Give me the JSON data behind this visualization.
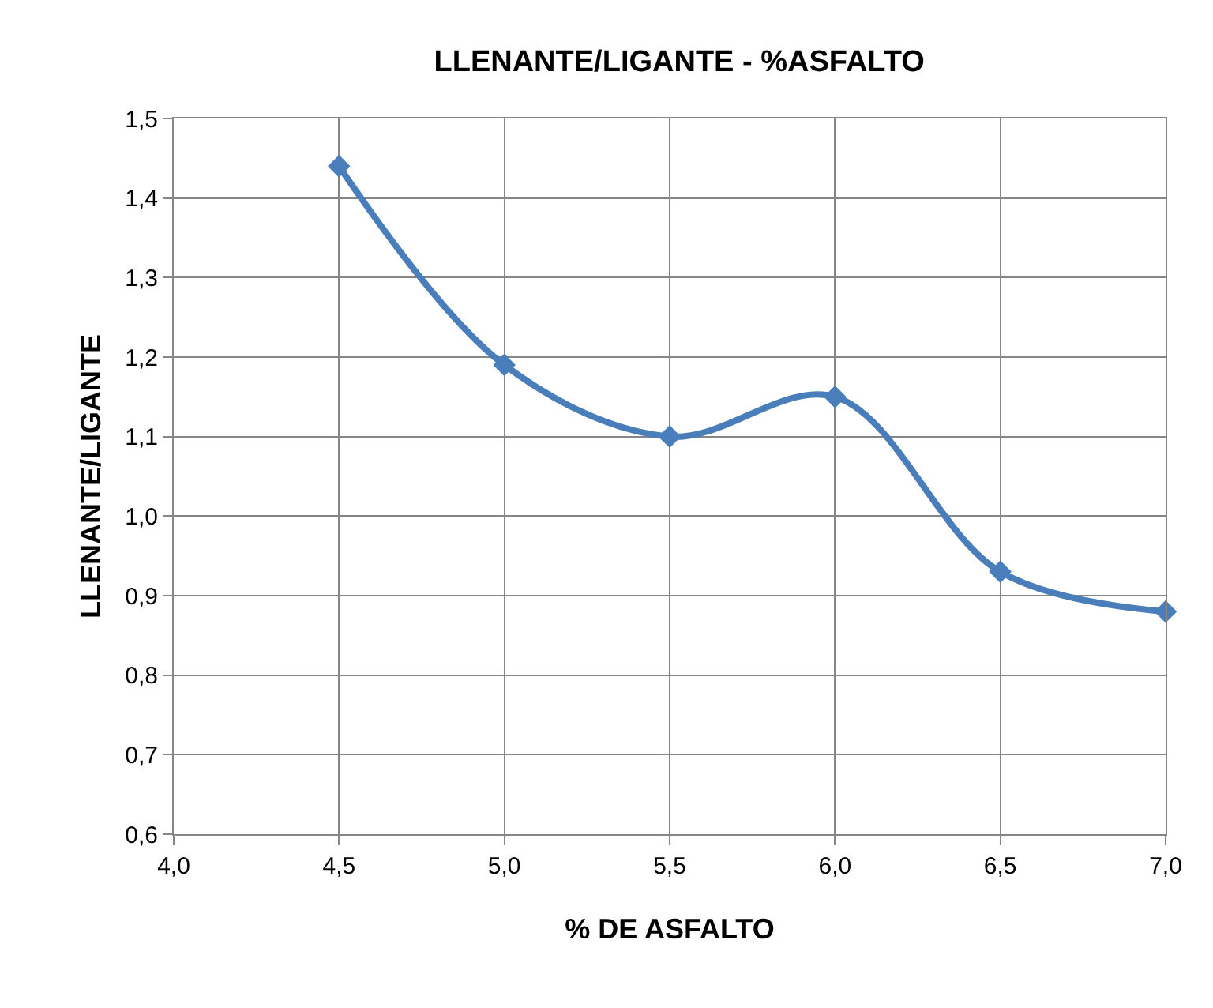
{
  "chart_data": {
    "type": "line",
    "title": "LLENANTE/LIGANTE - %ASFALTO",
    "xlabel": "% DE ASFALTO",
    "ylabel": "LLENANTE/LIGANTE",
    "x": [
      4.5,
      5.0,
      5.5,
      6.0,
      6.5,
      7.0
    ],
    "series": [
      {
        "color": "#4a7ebb",
        "values": [
          1.44,
          1.19,
          1.1,
          1.15,
          0.93,
          0.88
        ]
      }
    ],
    "xlim": [
      4.0,
      7.0
    ],
    "xticks": [
      {
        "value": 4.0,
        "label": "4,0"
      },
      {
        "value": 4.5,
        "label": "4,5"
      },
      {
        "value": 5.0,
        "label": "5,0"
      },
      {
        "value": 5.5,
        "label": "5,5"
      },
      {
        "value": 6.0,
        "label": "6,0"
      },
      {
        "value": 6.5,
        "label": "6,5"
      },
      {
        "value": 7.0,
        "label": "7,0"
      }
    ],
    "ylim": [
      0.6,
      1.5
    ],
    "yticks": [
      {
        "value": 0.6,
        "label": "0,6"
      },
      {
        "value": 0.7,
        "label": "0,7"
      },
      {
        "value": 0.8,
        "label": "0,8"
      },
      {
        "value": 0.9,
        "label": "0,9"
      },
      {
        "value": 1.0,
        "label": "1,0"
      },
      {
        "value": 1.1,
        "label": "1,1"
      },
      {
        "value": 1.2,
        "label": "1,2"
      },
      {
        "value": 1.3,
        "label": "1,3"
      },
      {
        "value": 1.4,
        "label": "1,4"
      },
      {
        "value": 1.5,
        "label": "1,5"
      }
    ],
    "grid": true,
    "marker": "diamond",
    "line_style": "solid"
  }
}
